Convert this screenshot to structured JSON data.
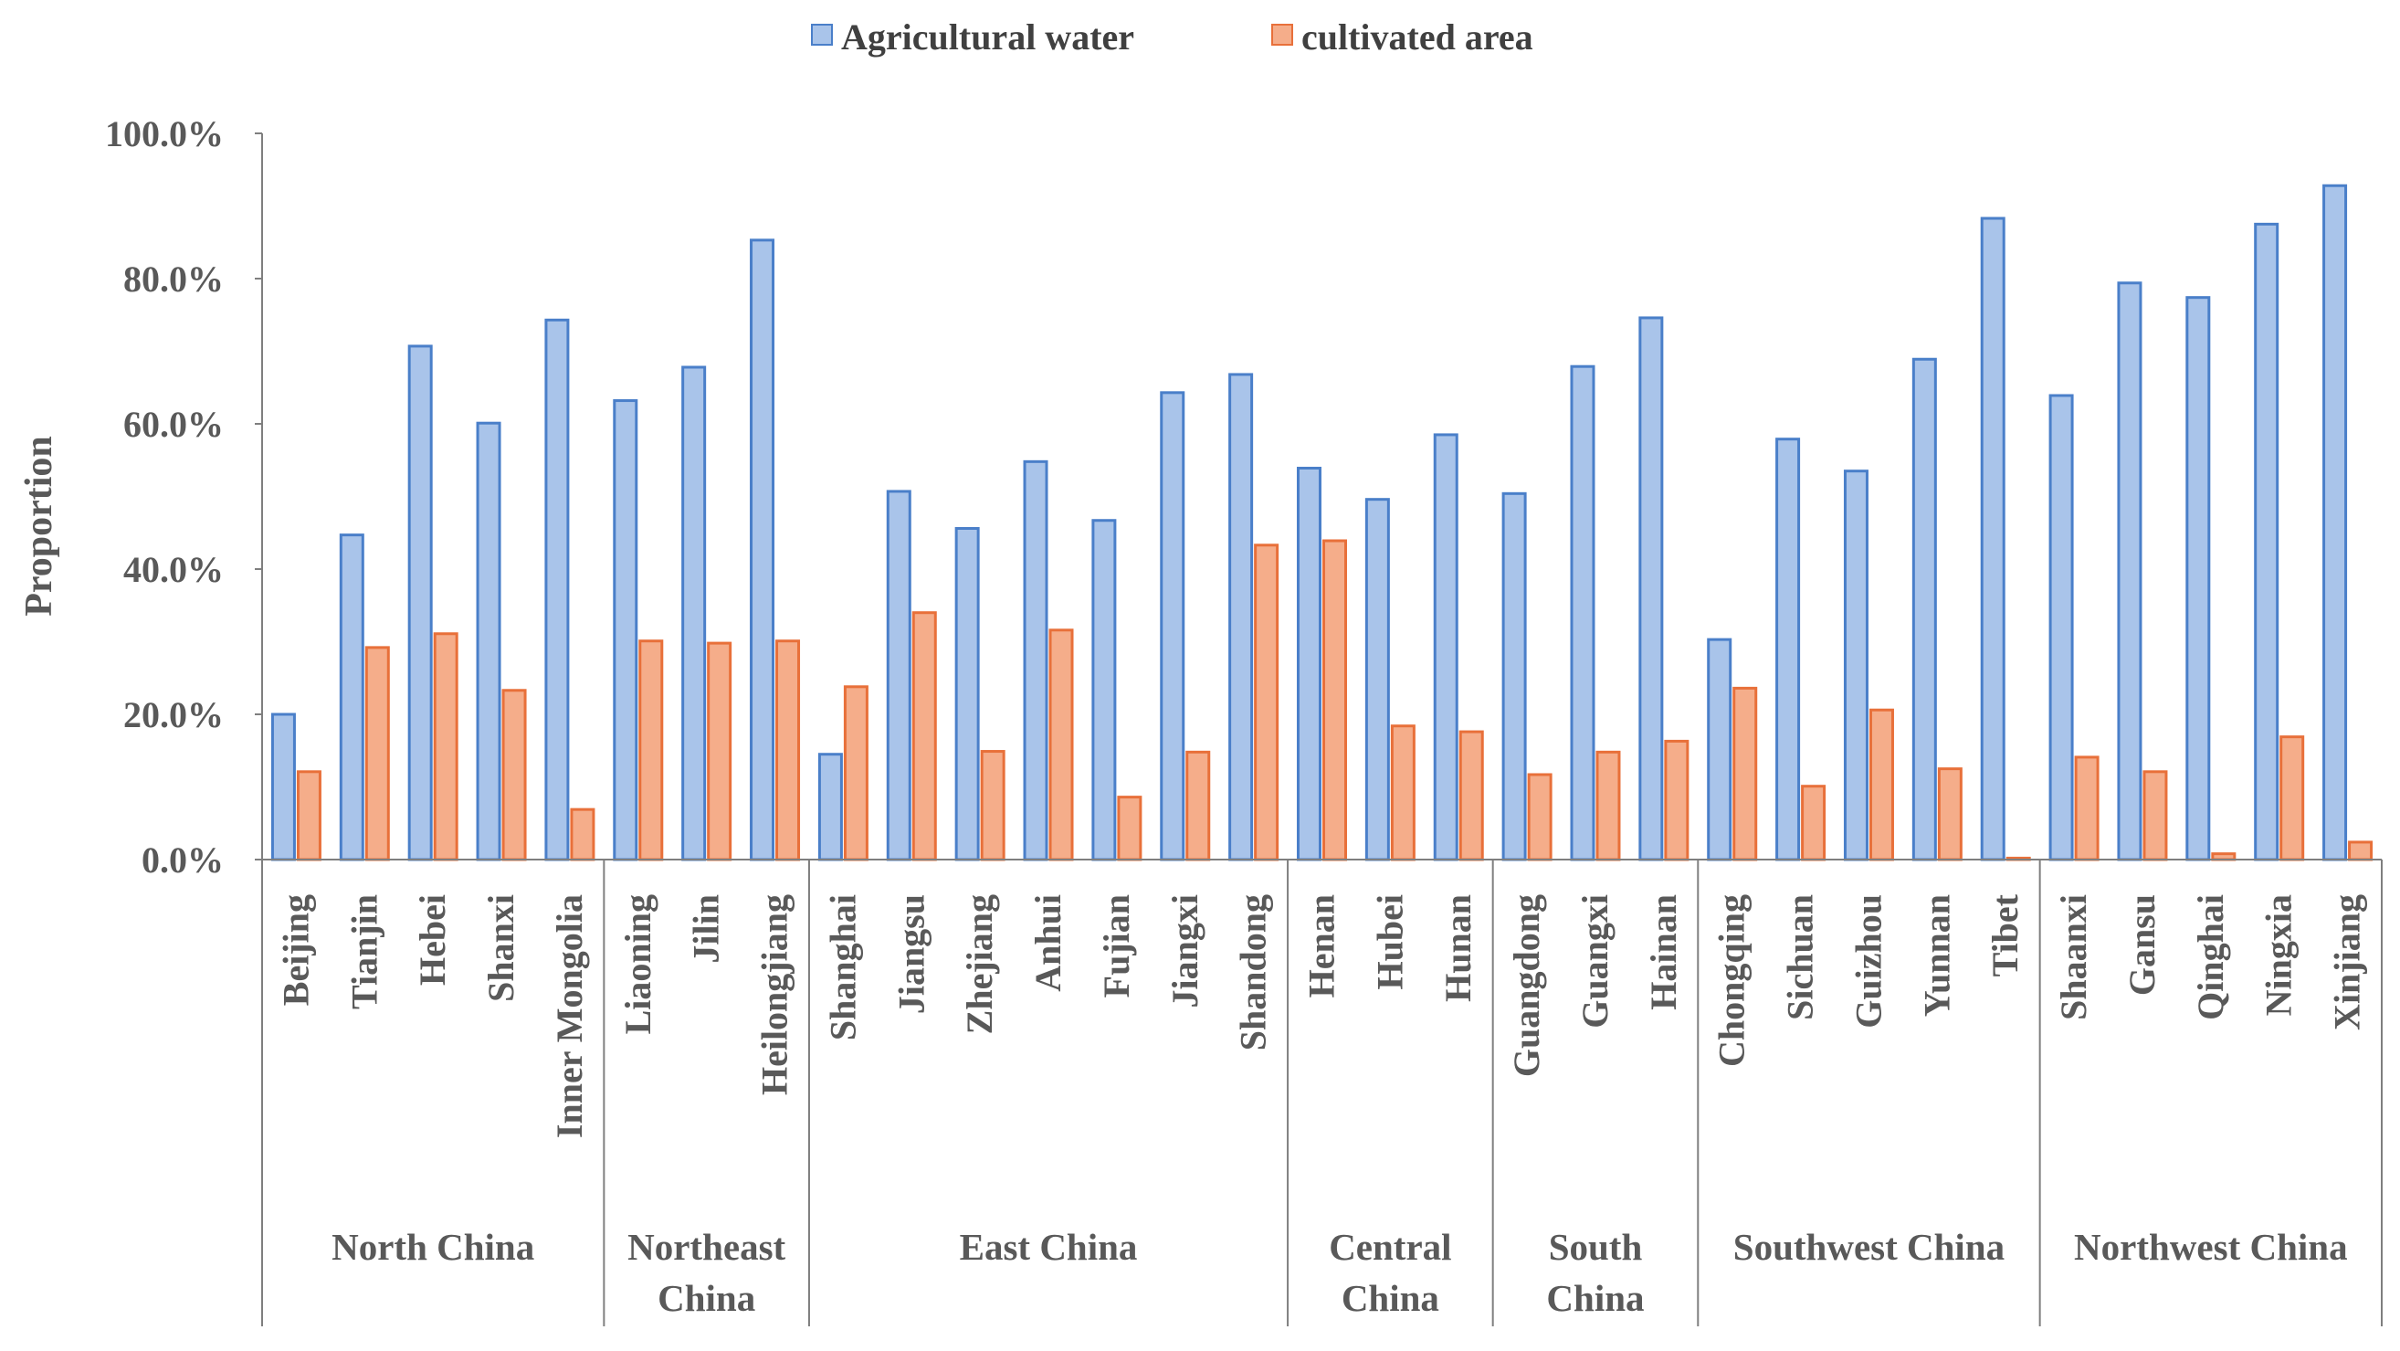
{
  "chart_data": {
    "type": "bar",
    "legend": "top-center",
    "ylabel": "Proportion",
    "ylim": [
      0,
      100
    ],
    "yticks": [
      "0.0%",
      "20.0%",
      "40.0%",
      "60.0%",
      "80.0%",
      "100.0%"
    ],
    "colors": {
      "water_fill": "#a9c4ea",
      "water_stroke": "#4a7fc9",
      "area_fill": "#f5ad8a",
      "area_stroke": "#e8703a"
    },
    "categories": [
      "Beijing",
      "Tianjin",
      "Hebei",
      "Shanxi",
      "Inner Mongolia",
      "Liaoning",
      "Jilin",
      "Heilongjiang",
      "Shanghai",
      "Jiangsu",
      "Zhejiang",
      "Anhui",
      "Fujian",
      "Jiangxi",
      "Shandong",
      "Henan",
      "Hubei",
      "Hunan",
      "Guangdong",
      "Guangxi",
      "Hainan",
      "Chongqing",
      "Sichuan",
      "Guizhou",
      "Yunnan",
      "Tibet",
      "Shaanxi",
      "Gansu",
      "Qinghai",
      "Ningxia",
      "Xinjiang"
    ],
    "series": [
      {
        "name": "Agricultural water",
        "values": [
          20.0,
          44.7,
          70.7,
          60.1,
          74.3,
          63.2,
          67.8,
          85.3,
          14.5,
          50.7,
          45.6,
          54.8,
          46.7,
          64.3,
          66.8,
          53.9,
          49.6,
          58.5,
          50.4,
          67.9,
          74.6,
          30.3,
          57.9,
          53.5,
          68.9,
          88.3,
          63.9,
          79.4,
          77.4,
          87.5,
          92.8
        ]
      },
      {
        "name": "cultivated area",
        "values": [
          12.1,
          29.2,
          31.1,
          23.3,
          6.9,
          30.1,
          29.8,
          30.1,
          23.8,
          34.0,
          14.9,
          31.6,
          8.6,
          14.8,
          43.3,
          43.9,
          18.4,
          17.6,
          11.7,
          14.8,
          16.3,
          23.6,
          10.1,
          20.6,
          12.5,
          0.2,
          14.1,
          12.1,
          0.8,
          16.9,
          2.4
        ]
      }
    ],
    "regions": [
      {
        "name": [
          "North China"
        ],
        "count": 5
      },
      {
        "name": [
          "Northeast",
          "China"
        ],
        "count": 3
      },
      {
        "name": [
          "East China"
        ],
        "count": 7
      },
      {
        "name": [
          "Central",
          "China"
        ],
        "count": 3
      },
      {
        "name": [
          "South",
          "China"
        ],
        "count": 3
      },
      {
        "name": [
          "Southwest China"
        ],
        "count": 5
      },
      {
        "name": [
          "Northwest China"
        ],
        "count": 5
      }
    ]
  }
}
